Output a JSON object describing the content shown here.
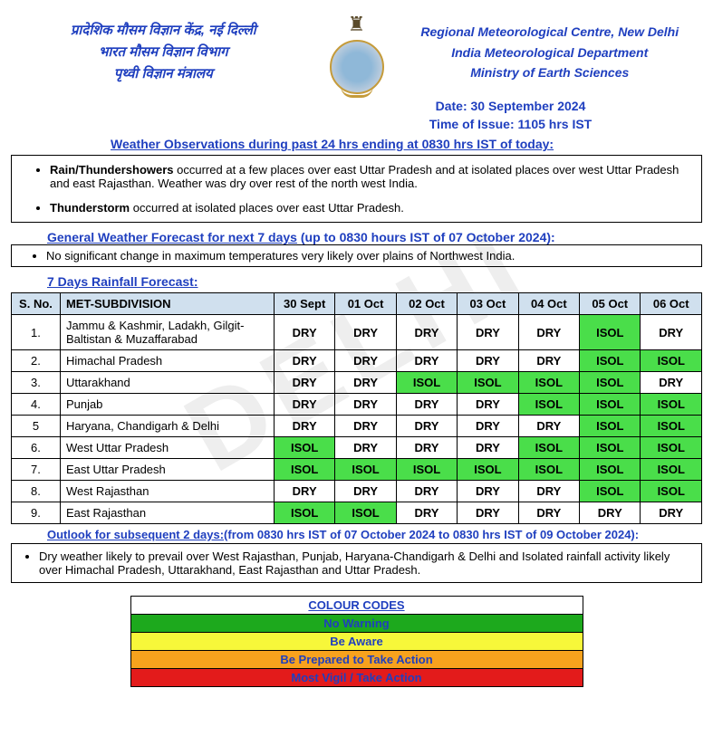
{
  "header": {
    "hindi_line1": "प्रादेशिक मौसम विज्ञान केंद्र, नई दिल्ली",
    "hindi_line2": "भारत मौसम विज्ञान विभाग",
    "hindi_line3": "पृथ्वी विज्ञान मंत्रालय",
    "eng_line1": "Regional Meteorological Centre, New Delhi",
    "eng_line2": "India Meteorological Department",
    "eng_line3": "Ministry of Earth Sciences"
  },
  "date_line": "Date: 30 September 2024",
  "time_line": "Time of Issue: 1105 hrs IST",
  "obs_title": "Weather Observations during past 24 hrs ending at 0830 hrs IST of today:",
  "obs_items": {
    "b1bold": "Rain/Thundershowers",
    "b1rest": " occurred at a few places over east Uttar Pradesh and at isolated places over west Uttar Pradesh and east Rajasthan. Weather was dry over rest of the north west India.",
    "b2bold": "Thunderstorm",
    "b2rest": " occurred at isolated places over east Uttar Pradesh."
  },
  "gen_title": "General Weather Forecast for next 7 days",
  "gen_paren": " (up to 0830 hours IST of 07 October 2024):",
  "gen_item": "No significant change in maximum temperatures very likely over plains of Northwest India.",
  "rain_title": "7 Days Rainfall Forecast:",
  "table": {
    "headers": [
      "S. No.",
      "MET-SUBDIVISION",
      "30 Sept",
      "01 Oct",
      "02 Oct",
      "03 Oct",
      "04 Oct",
      "05 Oct",
      "06 Oct"
    ],
    "rows": [
      {
        "sno": "1.",
        "sub": "Jammu & Kashmir, Ladakh, Gilgit-Baltistan & Muzaffarabad",
        "v": [
          "DRY",
          "DRY",
          "DRY",
          "DRY",
          "DRY",
          "ISOL",
          "DRY"
        ]
      },
      {
        "sno": "2.",
        "sub": "Himachal Pradesh",
        "v": [
          "DRY",
          "DRY",
          "DRY",
          "DRY",
          "DRY",
          "ISOL",
          "ISOL"
        ]
      },
      {
        "sno": "3.",
        "sub": "Uttarakhand",
        "v": [
          "DRY",
          "DRY",
          "ISOL",
          "ISOL",
          "ISOL",
          "ISOL",
          "DRY"
        ]
      },
      {
        "sno": "4.",
        "sub": "Punjab",
        "v": [
          "DRY",
          "DRY",
          "DRY",
          "DRY",
          "ISOL",
          "ISOL",
          "ISOL"
        ]
      },
      {
        "sno": "5",
        "sub": "Haryana, Chandigarh & Delhi",
        "v": [
          "DRY",
          "DRY",
          "DRY",
          "DRY",
          "DRY",
          "ISOL",
          "ISOL"
        ]
      },
      {
        "sno": "6.",
        "sub": "West Uttar Pradesh",
        "v": [
          "ISOL",
          "DRY",
          "DRY",
          "DRY",
          "ISOL",
          "ISOL",
          "ISOL"
        ]
      },
      {
        "sno": "7.",
        "sub": "East Uttar Pradesh",
        "v": [
          "ISOL",
          "ISOL",
          "ISOL",
          "ISOL",
          "ISOL",
          "ISOL",
          "ISOL"
        ]
      },
      {
        "sno": "8.",
        "sub": "West Rajasthan",
        "v": [
          "DRY",
          "DRY",
          "DRY",
          "DRY",
          "DRY",
          "ISOL",
          "ISOL"
        ]
      },
      {
        "sno": "9.",
        "sub": "East Rajasthan",
        "v": [
          "ISOL",
          "ISOL",
          "DRY",
          "DRY",
          "DRY",
          "DRY",
          "DRY"
        ]
      }
    ],
    "isol_color": "#4ade4a"
  },
  "outlook": {
    "title_u": "Outlook for subsequent 2 days:",
    "title_rest": "(from 0830 hrs IST of 07 October 2024 to 0830 hrs IST of 09 October 2024):",
    "text": "Dry weather likely to prevail over West Rajasthan, Punjab, Haryana-Chandigarh & Delhi and Isolated rainfall activity likely over Himachal Pradesh, Uttarakhand, East Rajasthan and Uttar Pradesh."
  },
  "colorcodes": {
    "title": "COLOUR CODES",
    "rows": [
      {
        "bg": "#1da91d",
        "fg": "#1f3fbf",
        "text": "No Warning"
      },
      {
        "bg": "#f7f73a",
        "fg": "#1f3fbf",
        "text": "Be Aware"
      },
      {
        "bg": "#f7a21d",
        "fg": "#1f3fbf",
        "text": "Be Prepared to Take Action"
      },
      {
        "bg": "#e31b1b",
        "fg": "#1f3fbf",
        "text": "Most Vigil / Take Action"
      }
    ]
  },
  "watermark": "DELHI"
}
